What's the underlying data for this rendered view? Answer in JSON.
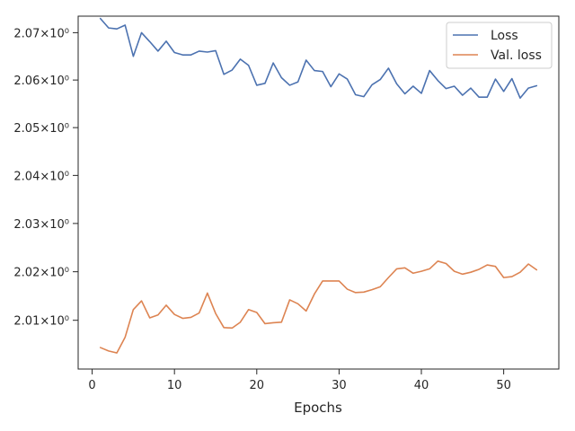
{
  "chart_data": {
    "type": "line",
    "xlabel": "Epochs",
    "ylabel": "",
    "xlim": [
      -1.7,
      56.7
    ],
    "ylim": [
      2.0,
      2.0735
    ],
    "y_scale": "log",
    "grid": false,
    "legend_position": "top-right",
    "x_ticks": [
      0,
      10,
      20,
      30,
      40,
      50
    ],
    "y_ticks": [
      {
        "value": 2.01,
        "label": "2.01×10⁰"
      },
      {
        "value": 2.02,
        "label": "2.02×10⁰"
      },
      {
        "value": 2.03,
        "label": "2.03×10⁰"
      },
      {
        "value": 2.04,
        "label": "2.04×10⁰"
      },
      {
        "value": 2.05,
        "label": "2.05×10⁰"
      },
      {
        "value": 2.06,
        "label": "2.06×10⁰"
      },
      {
        "value": 2.07,
        "label": "2.07×10⁰"
      }
    ],
    "x": [
      1,
      2,
      3,
      4,
      5,
      6,
      7,
      8,
      9,
      10,
      11,
      12,
      13,
      14,
      15,
      16,
      17,
      18,
      19,
      20,
      21,
      22,
      23,
      24,
      25,
      26,
      27,
      28,
      29,
      30,
      31,
      32,
      33,
      34,
      35,
      36,
      37,
      38,
      39,
      40,
      41,
      42,
      43,
      44,
      45,
      46,
      47,
      48,
      49,
      50,
      51,
      52,
      53,
      54
    ],
    "series": [
      {
        "name": "Loss",
        "color": "#4c72b0",
        "values": [
          2.073,
          2.071,
          2.0708,
          2.0716,
          2.065,
          2.07,
          2.0681,
          2.0661,
          2.0682,
          2.0658,
          2.0653,
          2.0653,
          2.0661,
          2.0659,
          2.0662,
          2.0612,
          2.0621,
          2.0644,
          2.0631,
          2.0589,
          2.0593,
          2.0636,
          2.0605,
          2.0589,
          2.0596,
          2.0642,
          2.062,
          2.0618,
          2.0586,
          2.0613,
          2.0602,
          2.0569,
          2.0565,
          2.059,
          2.0601,
          2.0625,
          2.0592,
          2.0571,
          2.0587,
          2.0572,
          2.062,
          2.0599,
          2.0582,
          2.0587,
          2.0568,
          2.0583,
          2.0564,
          2.0564,
          2.0602,
          2.0576,
          2.0603,
          2.0562,
          2.0583,
          2.0588
        ]
      },
      {
        "name": "Val. loss",
        "color": "#dd8452",
        "values": [
          2.0044,
          2.0037,
          2.0033,
          2.0065,
          2.0122,
          2.014,
          2.0105,
          2.0111,
          2.0131,
          2.0112,
          2.0104,
          2.0106,
          2.0115,
          2.0156,
          2.0114,
          2.0085,
          2.0084,
          2.0096,
          2.0122,
          2.0116,
          2.0093,
          2.0095,
          2.0096,
          2.0142,
          2.0134,
          2.0119,
          2.0154,
          2.0181,
          2.0181,
          2.0181,
          2.0164,
          2.0157,
          2.0158,
          2.0163,
          2.0169,
          2.0188,
          2.0206,
          2.0208,
          2.0197,
          2.0201,
          2.0206,
          2.0222,
          2.0217,
          2.0201,
          2.0195,
          2.0199,
          2.0205,
          2.0214,
          2.0211,
          2.0188,
          2.019,
          2.0199,
          2.0216,
          2.0204
        ]
      }
    ]
  }
}
